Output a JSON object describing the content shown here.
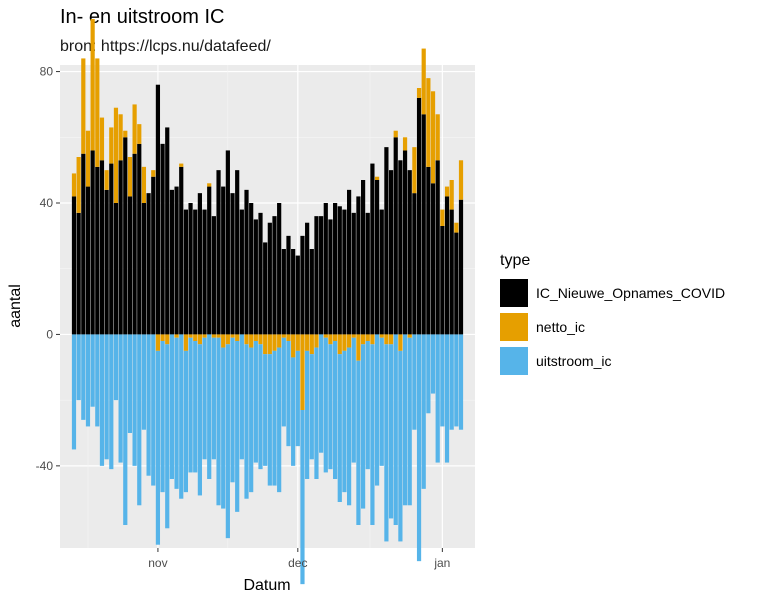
{
  "chart_data": {
    "type": "bar",
    "stacked": true,
    "title": "In- en uitstroom IC",
    "subtitle": "bron: https://lcps.nu/datafeed/",
    "xlabel": "Datum",
    "ylabel": "aantal",
    "ylim": [
      -65,
      82
    ],
    "yticks": [
      -40,
      0,
      40,
      80
    ],
    "x_tick_labels": [
      {
        "label": "nov",
        "day": 18
      },
      {
        "label": "dec",
        "day": 48
      },
      {
        "label": "jan",
        "day": 79
      }
    ],
    "x_start": "2020-10-14",
    "grid": true,
    "legend": {
      "title": "type",
      "position": "right"
    },
    "series": [
      {
        "name": "IC_Nieuwe_Opnames_COVID",
        "color": "#000000",
        "values": [
          42,
          37,
          55,
          45,
          56,
          51,
          53,
          44,
          52,
          40,
          53,
          60,
          42,
          55,
          58,
          40,
          43,
          48,
          76,
          58,
          63,
          44,
          45,
          51,
          38,
          40,
          38,
          43,
          38,
          45,
          36,
          50,
          45,
          56,
          43,
          50,
          38,
          44,
          40,
          35,
          37,
          28,
          34,
          36,
          40,
          26,
          30,
          26,
          24,
          30,
          34,
          26,
          36,
          36,
          40,
          35,
          40,
          39,
          38,
          44,
          37,
          42,
          47,
          37,
          52,
          47,
          38,
          57,
          50,
          60,
          53,
          56,
          50,
          43,
          72,
          67,
          51,
          46,
          53,
          33,
          42,
          38,
          31,
          41
        ]
      },
      {
        "name": "netto_ic",
        "color": "#E69F00",
        "values": [
          7,
          17,
          29,
          17,
          40,
          33,
          13,
          6,
          11,
          29,
          14,
          2,
          12,
          15,
          6,
          11,
          0,
          2,
          -5,
          -2,
          -3,
          0,
          -1,
          1,
          -5,
          -1,
          -2,
          -3,
          -1,
          1,
          -1,
          -1,
          -4,
          -3,
          -1,
          -2,
          0,
          -3,
          -4,
          -2,
          -3,
          -6,
          -6,
          -5,
          -4,
          -1,
          -2,
          -7,
          -5,
          -23,
          -5,
          -6,
          -4,
          0,
          -1,
          -3,
          -2,
          -6,
          -5,
          -4,
          -1,
          -8,
          -3,
          -2,
          -3,
          1,
          -1,
          -3,
          -3,
          2,
          -5,
          4,
          -1,
          14,
          3,
          20,
          27,
          28,
          14,
          5,
          3,
          9,
          3,
          12
        ]
      },
      {
        "name": "uitstroom_ic",
        "color": "#56B4E9",
        "values": [
          -35,
          -20,
          -26,
          -28,
          -22,
          -28,
          -40,
          -38,
          -41,
          -20,
          -39,
          -58,
          -30,
          -40,
          -52,
          -29,
          -43,
          -46,
          -59,
          -46,
          -56,
          -44,
          -46,
          -50,
          -43,
          -41,
          -40,
          -46,
          -37,
          -44,
          -37,
          -51,
          -49,
          -59,
          -44,
          -52,
          -38,
          -47,
          -44,
          -37,
          -38,
          -34,
          -40,
          -41,
          -44,
          -27,
          -32,
          -33,
          -29,
          -53,
          -39,
          -32,
          -40,
          -36,
          -41,
          -38,
          -42,
          -45,
          -43,
          -48,
          -38,
          -50,
          -50,
          -39,
          -55,
          -46,
          -39,
          -60,
          -53,
          -58,
          -58,
          -52,
          -51,
          -29,
          -69,
          -47,
          -24,
          -18,
          -39,
          -28,
          -39,
          -29,
          -28,
          -29
        ]
      }
    ]
  }
}
